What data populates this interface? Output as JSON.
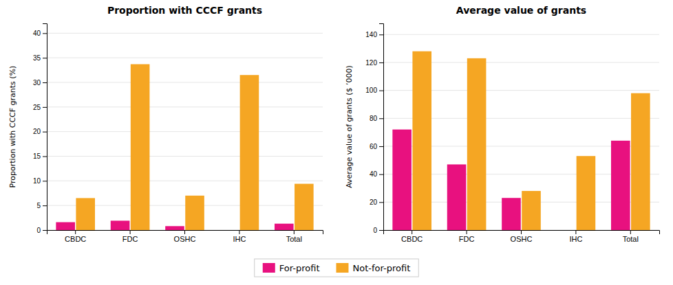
{
  "chart_data": [
    {
      "type": "bar",
      "title": "Proportion with CCCF grants",
      "ylabel": "Proportion with CCCF grants (%)",
      "categories": [
        "CBDC",
        "FDC",
        "OSHC",
        "IHC",
        "Total"
      ],
      "series": [
        {
          "name": "For-profit",
          "color": "#E8117F",
          "values": [
            1.6,
            1.9,
            0.8,
            0.0,
            1.3
          ]
        },
        {
          "name": "Not-for-profit",
          "color": "#F5A623",
          "values": [
            6.5,
            33.7,
            7.0,
            31.5,
            9.4
          ]
        }
      ],
      "ylim": [
        0,
        42
      ],
      "yticks": [
        0,
        5,
        10,
        15,
        20,
        25,
        30,
        35,
        40
      ],
      "grid": true,
      "legend": "bottom"
    },
    {
      "type": "bar",
      "title": "Average value of grants",
      "ylabel": "Average value of grants ($ ’000)",
      "categories": [
        "CBDC",
        "FDC",
        "OSHC",
        "IHC",
        "Total"
      ],
      "series": [
        {
          "name": "For-profit",
          "color": "#E8117F",
          "values": [
            72,
            47,
            23,
            0,
            64
          ]
        },
        {
          "name": "Not-for-profit",
          "color": "#F5A623",
          "values": [
            128,
            123,
            28,
            53,
            98
          ]
        }
      ],
      "ylim": [
        0,
        148
      ],
      "yticks": [
        0,
        20,
        40,
        60,
        80,
        100,
        120,
        140
      ],
      "grid": true
    }
  ]
}
